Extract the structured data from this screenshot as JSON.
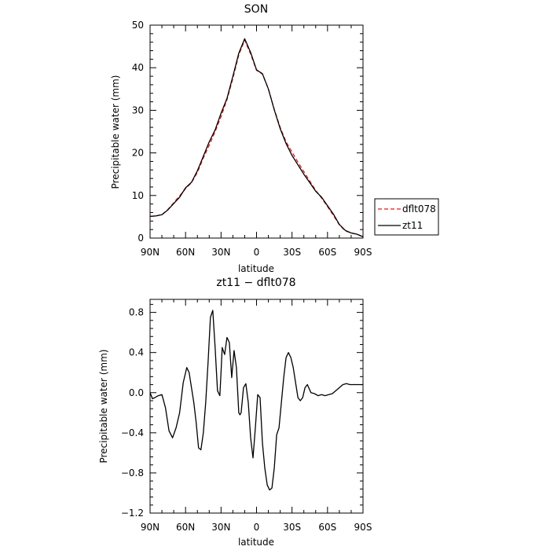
{
  "chart_data": [
    {
      "type": "line",
      "title": "SON",
      "xlabel": "latitude",
      "ylabel": "Precipitable water (mm)",
      "x_ticks": [
        90,
        60,
        30,
        0,
        -30,
        -60,
        -90
      ],
      "x_tick_labels": [
        "90N",
        "60N",
        "30N",
        "0",
        "30S",
        "60S",
        "90S"
      ],
      "y_ticks": [
        0,
        10,
        20,
        30,
        40,
        50
      ],
      "y_tick_labels": [
        "0",
        "10",
        "20",
        "30",
        "40",
        "50"
      ],
      "xlim": [
        90,
        -90
      ],
      "ylim": [
        0,
        50
      ],
      "legend_position": "outside right, lower",
      "series": [
        {
          "name": "dflt078",
          "color": "#e41a1c",
          "dash": "dashed",
          "x": [
            90,
            85,
            80,
            75,
            70,
            65,
            60,
            55,
            50,
            45,
            40,
            35,
            30,
            25,
            20,
            15,
            10,
            5,
            0,
            -5,
            -10,
            -15,
            -20,
            -25,
            -30,
            -35,
            -40,
            -45,
            -50,
            -55,
            -60,
            -65,
            -70,
            -75,
            -80,
            -85,
            -90
          ],
          "y": [
            5.1,
            5.2,
            5.5,
            6.7,
            8.3,
            9.9,
            11.6,
            13.0,
            15.4,
            18.8,
            21.8,
            25.0,
            28.5,
            32.5,
            37.5,
            43.0,
            46.5,
            43.2,
            39.4,
            38.5,
            35.0,
            30.2,
            26.0,
            22.6,
            20.2,
            17.8,
            15.6,
            13.4,
            11.2,
            9.4,
            7.4,
            5.3,
            3.1,
            1.7,
            1.2,
            0.9,
            0.3
          ]
        },
        {
          "name": "zt11",
          "color": "#000000",
          "dash": "solid",
          "x": [
            90,
            85,
            80,
            75,
            70,
            65,
            60,
            55,
            50,
            45,
            40,
            35,
            30,
            25,
            20,
            15,
            10,
            5,
            0,
            -5,
            -10,
            -15,
            -20,
            -25,
            -30,
            -35,
            -40,
            -45,
            -50,
            -55,
            -60,
            -65,
            -70,
            -75,
            -80,
            -85,
            -90
          ],
          "y": [
            5.1,
            5.2,
            5.5,
            6.6,
            8.1,
            9.6,
            11.8,
            13.1,
            15.8,
            19.2,
            22.6,
            25.4,
            29.3,
            32.8,
            38.0,
            43.4,
            46.8,
            43.6,
            39.5,
            38.6,
            35.0,
            30.1,
            25.7,
            22.2,
            19.4,
            17.2,
            15.0,
            13.0,
            11.0,
            9.6,
            7.6,
            5.6,
            3.2,
            1.8,
            1.2,
            0.9,
            0.3
          ]
        }
      ]
    },
    {
      "type": "line",
      "title": "zt11 − dflt078",
      "xlabel": "latitude",
      "ylabel": "Precipitable water (mm)",
      "x_ticks": [
        90,
        60,
        30,
        0,
        -30,
        -60,
        -90
      ],
      "x_tick_labels": [
        "90N",
        "60N",
        "30N",
        "0",
        "30S",
        "60S",
        "90S"
      ],
      "y_ticks": [
        -1.2,
        -0.8,
        -0.4,
        0.0,
        0.4,
        0.8
      ],
      "y_tick_labels": [
        "−1.2",
        "−0.8",
        "−0.4",
        "0.0",
        "0.4",
        "0.8"
      ],
      "xlim": [
        90,
        -90
      ],
      "ylim": [
        -1.2,
        0.93
      ],
      "series": [
        {
          "color": "#000000",
          "dash": "solid",
          "x": [
            90,
            88,
            86,
            83,
            80,
            77,
            74,
            71,
            68,
            65,
            62,
            59,
            57,
            55,
            53,
            51,
            49,
            47,
            45,
            43,
            41,
            39,
            37,
            35,
            33,
            31,
            30,
            29,
            27,
            25,
            23,
            21,
            19,
            17,
            15,
            14,
            13,
            11,
            9,
            7,
            5,
            3,
            1,
            -1,
            -3,
            -5,
            -7,
            -9,
            -11,
            -13,
            -15,
            -17,
            -19,
            -21,
            -23,
            -25,
            -27,
            -29,
            -31,
            -33,
            -35,
            -37,
            -39,
            -41,
            -43,
            -46,
            -49,
            -52,
            -55,
            -58,
            -61,
            -64,
            -67,
            -70,
            -73,
            -76,
            -79,
            -82,
            -85,
            -88,
            -90
          ],
          "y": [
            0.0,
            -0.06,
            -0.05,
            -0.03,
            -0.02,
            -0.15,
            -0.38,
            -0.45,
            -0.35,
            -0.2,
            0.1,
            0.25,
            0.2,
            0.05,
            -0.1,
            -0.3,
            -0.55,
            -0.57,
            -0.4,
            -0.1,
            0.3,
            0.75,
            0.82,
            0.45,
            0.02,
            -0.03,
            0.2,
            0.45,
            0.38,
            0.55,
            0.5,
            0.15,
            0.42,
            0.25,
            -0.2,
            -0.22,
            -0.2,
            0.05,
            0.09,
            -0.1,
            -0.45,
            -0.65,
            -0.35,
            -0.02,
            -0.05,
            -0.5,
            -0.75,
            -0.92,
            -0.97,
            -0.95,
            -0.75,
            -0.42,
            -0.35,
            -0.1,
            0.15,
            0.35,
            0.4,
            0.35,
            0.25,
            0.1,
            -0.05,
            -0.08,
            -0.05,
            0.05,
            0.08,
            0.0,
            -0.01,
            -0.03,
            -0.02,
            -0.03,
            -0.02,
            -0.01,
            0.02,
            0.05,
            0.08,
            0.09,
            0.08,
            0.08,
            0.08,
            0.08,
            0.08
          ]
        }
      ]
    }
  ]
}
